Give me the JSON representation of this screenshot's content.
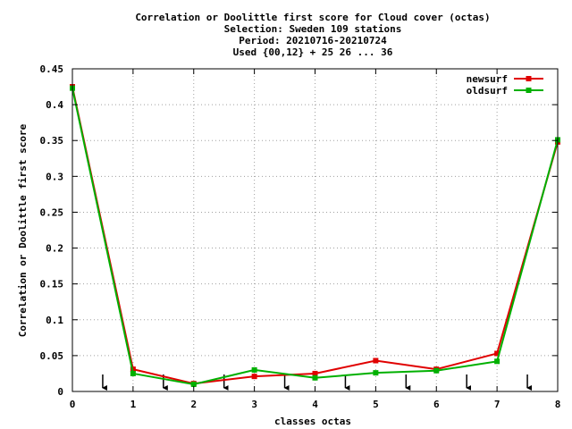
{
  "chart_data": {
    "type": "line",
    "title_lines": [
      "Correlation or Doolittle first score  for Cloud cover (octas)",
      "Selection: Sweden    109 stations",
      "Period: 20210716-20210724",
      "Used {00,12} + 25 26 ... 36"
    ],
    "xlabel": "classes octas",
    "ylabel": "Correlation or Doolittle first score",
    "xlim": [
      0,
      8
    ],
    "ylim": [
      0,
      0.45
    ],
    "x_ticks": [
      "0",
      "1",
      "2",
      "3",
      "4",
      "5",
      "6",
      "7",
      "8"
    ],
    "y_ticks": [
      "0",
      "0.05",
      "0.1",
      "0.15",
      "0.2",
      "0.25",
      "0.3",
      "0.35",
      "0.4",
      "0.45"
    ],
    "x_tick_values": [
      0,
      1,
      2,
      3,
      4,
      5,
      6,
      7,
      8
    ],
    "y_tick_values": [
      0,
      0.05,
      0.1,
      0.15,
      0.2,
      0.25,
      0.3,
      0.35,
      0.4,
      0.45
    ],
    "grid": true,
    "legend_position": "top-right",
    "series": [
      {
        "name": "newsurf",
        "color": "#e00000",
        "x": [
          0,
          1,
          2,
          3,
          4,
          5,
          6,
          7,
          8
        ],
        "values": [
          0.425,
          0.031,
          0.011,
          0.021,
          0.025,
          0.043,
          0.031,
          0.053,
          0.348
        ]
      },
      {
        "name": "oldsurf",
        "color": "#00b000",
        "x": [
          0,
          1,
          2,
          3,
          4,
          5,
          6,
          7,
          8
        ],
        "values": [
          0.423,
          0.025,
          0.01,
          0.03,
          0.019,
          0.026,
          0.029,
          0.042,
          0.351
        ]
      }
    ],
    "annotations": {
      "type": "down-arrows",
      "x": [
        0.5,
        1.5,
        2.5,
        3.5,
        4.5,
        5.5,
        6.5,
        7.5
      ]
    }
  }
}
